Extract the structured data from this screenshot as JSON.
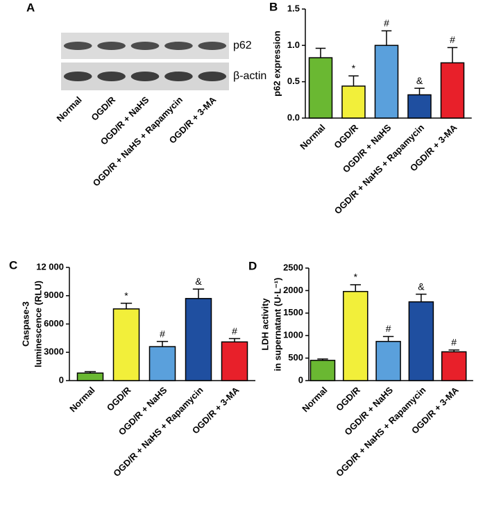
{
  "blot": {
    "panel_label": "A",
    "bands": [
      "p62",
      "β-actin"
    ],
    "lanes": [
      "Normal",
      "OGD/R",
      "OGD/R + NaHS",
      "OGD/R + NaHS + Rapamycin",
      "OGD/R + 3-MA"
    ]
  },
  "chart_data": [
    {
      "type": "bar",
      "panel_label": "B",
      "ylabel": [
        "p62 expression"
      ],
      "categories": [
        "Normal",
        "OGD/R",
        "OGD/R + NaHS",
        "OGD/R + NaHS + Rapamycin",
        "OGD/R + 3-MA"
      ],
      "values": [
        0.83,
        0.44,
        1.0,
        0.32,
        0.76
      ],
      "errors": [
        0.13,
        0.14,
        0.2,
        0.09,
        0.21
      ],
      "annotations": [
        null,
        "*",
        "#",
        "&",
        "#"
      ],
      "colors": [
        "#6ab832",
        "#f2ef3a",
        "#5aa0dc",
        "#1f4fa0",
        "#e8202a"
      ],
      "ylim": [
        0,
        1.5
      ],
      "yticks": [
        {
          "value": 0,
          "label": "0.0"
        },
        {
          "value": 0.5,
          "label": "0.5"
        },
        {
          "value": 1,
          "label": "1.0"
        },
        {
          "value": 1.5,
          "label": "1.5"
        }
      ]
    },
    {
      "type": "bar",
      "panel_label": "C",
      "ylabel": [
        "Caspase-3",
        "luminescence (RLU)"
      ],
      "categories": [
        "Normal",
        "OGD/R",
        "OGD/R + NaHS",
        "OGD/R + NaHS + Rapamycin",
        "OGD/R + 3-MA"
      ],
      "values": [
        800,
        7600,
        3600,
        8700,
        4100
      ],
      "errors": [
        150,
        600,
        550,
        1000,
        350
      ],
      "annotations": [
        null,
        "*",
        "#",
        "&",
        "#"
      ],
      "colors": [
        "#6ab832",
        "#f2ef3a",
        "#5aa0dc",
        "#1f4fa0",
        "#e8202a"
      ],
      "ylim": [
        0,
        12000
      ],
      "yticks": [
        0,
        3000,
        6000,
        9000,
        {
          "value": 12000,
          "label": "12 000"
        }
      ]
    },
    {
      "type": "bar",
      "panel_label": "D",
      "ylabel": [
        "LDH activity",
        "in supernatant (U·L⁻¹)"
      ],
      "categories": [
        "Normal",
        "OGD/R",
        "OGD/R + NaHS",
        "OGD/R + NaHS + Rapamycin",
        "OGD/R + 3-MA"
      ],
      "values": [
        450,
        1980,
        870,
        1750,
        640
      ],
      "errors": [
        30,
        150,
        110,
        170,
        40
      ],
      "annotations": [
        null,
        "*",
        "#",
        "&",
        "#"
      ],
      "colors": [
        "#6ab832",
        "#f2ef3a",
        "#5aa0dc",
        "#1f4fa0",
        "#e8202a"
      ],
      "ylim": [
        0,
        2500
      ],
      "yticks": [
        0,
        500,
        1000,
        1500,
        2000,
        2500
      ]
    }
  ]
}
